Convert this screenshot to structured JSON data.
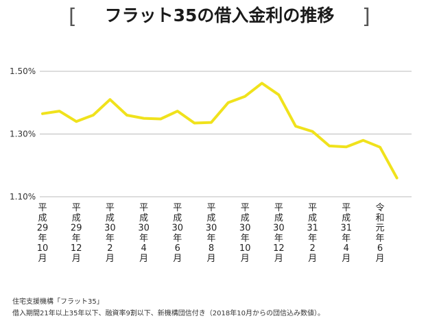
{
  "page": {
    "title": "フラット35の借入金利の推移",
    "bracket_left": "[",
    "bracket_right": "]",
    "source_line1": "住宅支援機構「フラット35」",
    "source_line2": "借入期間21年以上35年以下、融資率9割以下、新機構団信付き（2018年10月からの団信込み数値）。"
  },
  "colors": {
    "line": "#f0e21c",
    "grid": "#bbbbbb",
    "text": "#222222"
  },
  "chart_data": {
    "type": "line",
    "title": "フラット35の借入金利の推移",
    "ylim": [
      1.1,
      1.5
    ],
    "yticks": [
      {
        "value": 1.5,
        "label": "1.50%"
      },
      {
        "value": 1.3,
        "label": "1.30%"
      },
      {
        "value": 1.1,
        "label": "1.10%"
      }
    ],
    "grid": true,
    "x_labels": [
      {
        "index": 0,
        "label": "平成29年10月"
      },
      {
        "index": 2,
        "label": "平成29年12月"
      },
      {
        "index": 4,
        "label": "平成30年2月"
      },
      {
        "index": 6,
        "label": "平成30年4月"
      },
      {
        "index": 8,
        "label": "平成30年6月"
      },
      {
        "index": 10,
        "label": "平成30年8月"
      },
      {
        "index": 12,
        "label": "平成30年10月"
      },
      {
        "index": 14,
        "label": "平成30年12月"
      },
      {
        "index": 16,
        "label": "平成31年2月"
      },
      {
        "index": 18,
        "label": "平成31年4月"
      },
      {
        "index": 20,
        "label": "令和元年6月"
      }
    ],
    "series": [
      {
        "values": [
          1.365,
          1.373,
          1.34,
          1.36,
          1.41,
          1.36,
          1.35,
          1.348,
          1.373,
          1.335,
          1.337,
          1.4,
          1.42,
          1.462,
          1.425,
          1.325,
          1.308,
          1.262,
          1.259,
          1.28,
          1.258,
          1.16
        ]
      }
    ]
  }
}
